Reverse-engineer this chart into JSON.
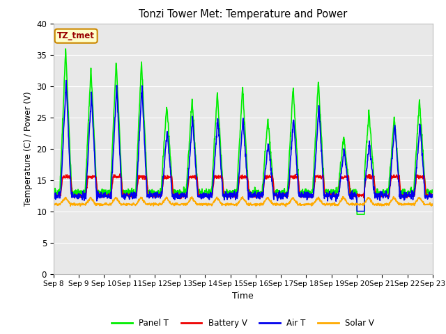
{
  "title": "Tonzi Tower Met: Temperature and Power",
  "xlabel": "Time",
  "ylabel": "Temperature (C) / Power (V)",
  "ylim": [
    0,
    40
  ],
  "yticks": [
    0,
    5,
    10,
    15,
    20,
    25,
    30,
    35,
    40
  ],
  "annotation": "TZ_tmet",
  "legend": [
    "Panel T",
    "Battery V",
    "Air T",
    "Solar V"
  ],
  "legend_colors": [
    "#00ee00",
    "#ee0000",
    "#0000ee",
    "#ffaa00"
  ],
  "line_width": 1.2,
  "bg_color": "#e8e8e8",
  "fig_color": "#ffffff",
  "panel_peaks": [
    36,
    33,
    34,
    34,
    27,
    28,
    29,
    30,
    25,
    30,
    31,
    22,
    26,
    25,
    28
  ],
  "air_peaks": [
    31,
    29,
    30,
    30,
    23,
    25,
    25,
    25,
    21,
    25,
    27,
    20,
    21,
    24,
    24
  ],
  "panel_base": 13.0,
  "air_base": 12.5,
  "battery_day": 15.5,
  "battery_night": 12.5,
  "solar_day": 12.2,
  "solar_night": 11.1
}
